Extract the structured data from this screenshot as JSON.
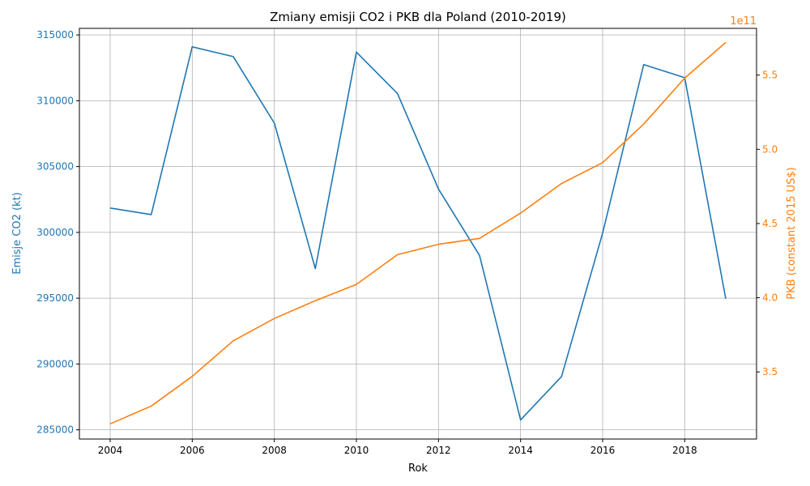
{
  "chart_data": {
    "type": "line",
    "title": "Zmiany emisji CO2 i PKB dla Poland (2010-2019)",
    "xlabel": "Rok",
    "ylabel_left": "Emisje CO2 (kt)",
    "ylabel_right": "PKB (constant 2015 US$)",
    "right_axis_offset_label": "1e11",
    "x": [
      2004,
      2005,
      2006,
      2007,
      2008,
      2009,
      2010,
      2011,
      2012,
      2013,
      2014,
      2015,
      2016,
      2017,
      2018,
      2019
    ],
    "x_ticks": [
      2004,
      2006,
      2008,
      2010,
      2012,
      2014,
      2016,
      2018
    ],
    "xlim": [
      2003.25,
      2019.75
    ],
    "y_left_ticks": [
      285000,
      290000,
      295000,
      300000,
      305000,
      310000,
      315000
    ],
    "y_left_lim": [
      284300,
      315500
    ],
    "y_right_ticks": [
      3.5,
      4.0,
      4.5,
      5.0,
      5.5
    ],
    "y_right_lim": [
      3.048,
      5.815
    ],
    "grid": true,
    "colors": {
      "co2": "#1f77b4",
      "gdp": "#ff7f0e",
      "grid": "#b0b0b0",
      "axis": "#000000"
    },
    "series": [
      {
        "axis": "left",
        "values": [
          301850,
          301350,
          314100,
          313350,
          308300,
          297250,
          313700,
          310550,
          303300,
          298250,
          285750,
          289050,
          299950,
          312750,
          311750,
          294950
        ]
      },
      {
        "axis": "right",
        "values": [
          3.15,
          3.27,
          3.47,
          3.71,
          3.86,
          3.98,
          4.09,
          4.29,
          4.36,
          4.4,
          4.57,
          4.77,
          4.91,
          5.17,
          5.48,
          5.72
        ]
      }
    ]
  }
}
